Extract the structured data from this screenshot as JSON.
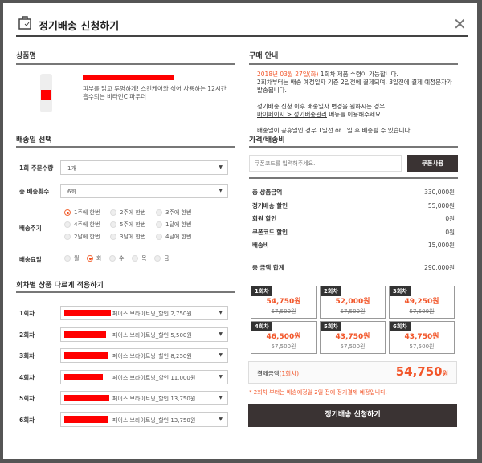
{
  "header": {
    "title": "정기배송 신청하기",
    "icon": "shopping-bag-icon",
    "close_icon": "close-icon"
  },
  "product": {
    "section": "상품명",
    "description": "피부를 맑고 투명하게! 스킨케어와 섞어 사용하는 12시간 흡수되는 비타민C 파우더"
  },
  "delivery": {
    "section": "배송일 선택",
    "qty_label": "1회 주문수량",
    "qty_value": "1개",
    "count_label": "총 배송횟수",
    "count_value": "6회",
    "cycle_label": "배송주기",
    "cycles": [
      "1주에 한번",
      "2주에 한번",
      "3주에 한번",
      "4주에 한번",
      "5주에 한번",
      "1달에 한번",
      "2달에 한번",
      "3달에 한번",
      "4달에 한번"
    ],
    "cycle_selected": "1주에 한번",
    "day_label": "배송요일",
    "days": [
      "월",
      "화",
      "수",
      "목",
      "금"
    ],
    "day_selected": "화"
  },
  "per_round": {
    "section": "회차별 상품 다르게 적용하기",
    "rows": [
      {
        "label": "1회차",
        "value": "페이스 브라이트닝_할인 2,750원"
      },
      {
        "label": "2회차",
        "value": "페이스 브라이트닝_할인 5,500원"
      },
      {
        "label": "3회차",
        "value": "페이스 브라이트닝_할인 8,250원"
      },
      {
        "label": "4회차",
        "value": "페이스 브라이트닝_할인 11,000원"
      },
      {
        "label": "5회차",
        "value": "페이스 브라이트닝_할인 13,750원"
      },
      {
        "label": "6회차",
        "value": "페이스 브라이트닝_할인 13,750원"
      }
    ]
  },
  "guide": {
    "section": "구매 안내",
    "date": "2018년 03월 27일(화)",
    "line1": " 1회차 제품 수령이 가능합니다.",
    "line2": "2회차부터는 배송 예정일자 기준 2일전에 결제되며, 3일전에 결제 예정문자가 발송됩니다.",
    "line3": "정기배송 신청 이후 배송일자 변경을 원하시는 경우",
    "link": "마이페이지 > 정기배송관리",
    "line4": " 메뉴를 이용해주세요.",
    "line5": "배송일이 공휴일인 경우 1일전 or 1일 후 배송될 수 있습니다."
  },
  "price": {
    "section": "가격/배송비",
    "coupon_placeholder": "쿠폰코드를 입력해주세요.",
    "coupon_button": "쿠폰사용",
    "rows": [
      {
        "label": "총 상품금액",
        "value": "330,000원"
      },
      {
        "label": "정기배송 할인",
        "value": "55,000원"
      },
      {
        "label": "회원 할인",
        "value": "0원"
      },
      {
        "label": "쿠폰코드 할인",
        "value": "0원"
      },
      {
        "label": "배송비",
        "value": "15,000원"
      }
    ],
    "total_label": "총 금액 합계",
    "total_value": "290,000원",
    "rounds": [
      {
        "label": "1회차",
        "price": "54,750원",
        "original": "57,500원"
      },
      {
        "label": "2회차",
        "price": "52,000원",
        "original": "57,500원"
      },
      {
        "label": "3회차",
        "price": "49,250원",
        "original": "57,500원"
      },
      {
        "label": "4회차",
        "price": "46,500원",
        "original": "57,500원"
      },
      {
        "label": "5회차",
        "price": "43,750원",
        "original": "57,500원"
      },
      {
        "label": "6회차",
        "price": "43,750원",
        "original": "57,500원"
      }
    ],
    "pay_label": "결제금액",
    "pay_sub": "(1회차)",
    "pay_amount": "54,750",
    "pay_unit": "원",
    "note": "* 2회차 부터는 배송예정일 2일 전에 정기결제 예정입니다.",
    "submit": "정기배송 신청하기"
  },
  "colors": {
    "accent": "#f2562a",
    "dark": "#3a3333"
  }
}
